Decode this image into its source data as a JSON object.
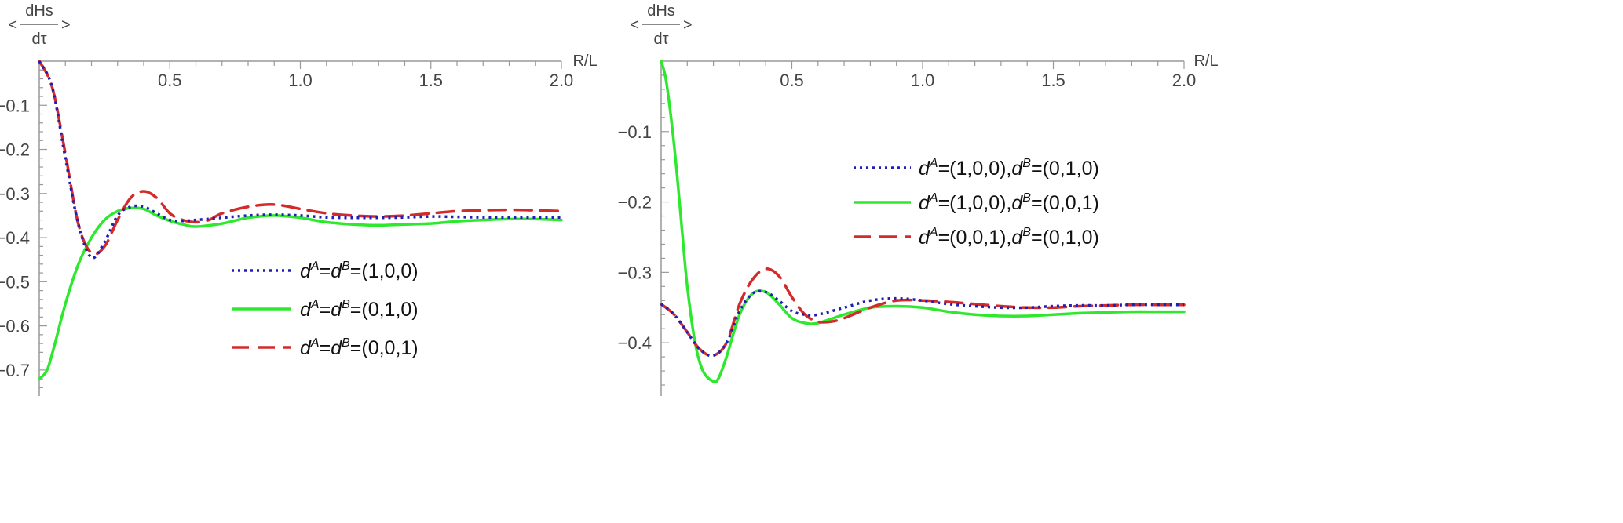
{
  "chart_data": [
    {
      "type": "line",
      "xlabel": "R/L",
      "ylabel": {
        "numerator": "dHs",
        "denominator": "dτ",
        "left_bracket": "<",
        "right_bracket": ">"
      },
      "xlim": [
        0,
        2.0
      ],
      "ylim": [
        -0.75,
        0.0
      ],
      "xticks": [
        "0.5",
        "1.0",
        "1.5",
        "2.0"
      ],
      "yticks": [
        "-0.1",
        "-0.2",
        "-0.3",
        "-0.4",
        "-0.5",
        "-0.6",
        "-0.7"
      ],
      "legend_position": "center-right",
      "series": [
        {
          "name": "dA=dB=(1,0,0)",
          "legend": {
            "d1": "d",
            "s1": "A",
            "eq": "=",
            "d2": "d",
            "s2": "B",
            "val": "=(1,0,0)"
          },
          "color": "#1f1fb4",
          "style": "dotted",
          "x": [
            0,
            0.05,
            0.1,
            0.15,
            0.2,
            0.25,
            0.3,
            0.35,
            0.4,
            0.45,
            0.5,
            0.55,
            0.6,
            0.7,
            0.8,
            0.9,
            1.0,
            1.1,
            1.2,
            1.3,
            1.4,
            1.5,
            1.6,
            1.7,
            1.8,
            1.9,
            2.0
          ],
          "y": [
            0,
            -0.06,
            -0.22,
            -0.37,
            -0.445,
            -0.41,
            -0.35,
            -0.33,
            -0.33,
            -0.345,
            -0.36,
            -0.362,
            -0.36,
            -0.355,
            -0.35,
            -0.348,
            -0.35,
            -0.354,
            -0.355,
            -0.355,
            -0.354,
            -0.352,
            -0.353,
            -0.354,
            -0.354,
            -0.354,
            -0.354
          ]
        },
        {
          "name": "dA=dB=(0,1,0)",
          "legend": {
            "d1": "d",
            "s1": "A",
            "eq": "=",
            "d2": "d",
            "s2": "B",
            "val": "=(0,1,0)"
          },
          "color": "#2ee82e",
          "style": "solid",
          "x": [
            0,
            0.03,
            0.06,
            0.1,
            0.15,
            0.2,
            0.25,
            0.3,
            0.35,
            0.4,
            0.45,
            0.5,
            0.55,
            0.6,
            0.7,
            0.8,
            0.9,
            1.0,
            1.1,
            1.2,
            1.3,
            1.4,
            1.5,
            1.6,
            1.7,
            1.8,
            1.9,
            2.0
          ],
          "y": [
            -0.72,
            -0.7,
            -0.64,
            -0.55,
            -0.46,
            -0.4,
            -0.36,
            -0.34,
            -0.333,
            -0.335,
            -0.35,
            -0.362,
            -0.37,
            -0.375,
            -0.368,
            -0.355,
            -0.35,
            -0.355,
            -0.365,
            -0.37,
            -0.372,
            -0.37,
            -0.368,
            -0.363,
            -0.36,
            -0.358,
            -0.358,
            -0.36
          ]
        },
        {
          "name": "dA=dB=(0,0,1)",
          "legend": {
            "d1": "d",
            "s1": "A",
            "eq": "=",
            "d2": "d",
            "s2": "B",
            "val": "=(0,0,1)"
          },
          "color": "#d42a2a",
          "style": "dashed",
          "x": [
            0,
            0.05,
            0.1,
            0.15,
            0.2,
            0.25,
            0.3,
            0.35,
            0.4,
            0.45,
            0.5,
            0.55,
            0.6,
            0.65,
            0.7,
            0.8,
            0.9,
            1.0,
            1.1,
            1.2,
            1.3,
            1.4,
            1.5,
            1.6,
            1.7,
            1.8,
            1.9,
            2.0
          ],
          "y": [
            0,
            -0.06,
            -0.21,
            -0.37,
            -0.435,
            -0.42,
            -0.36,
            -0.31,
            -0.295,
            -0.31,
            -0.345,
            -0.36,
            -0.365,
            -0.36,
            -0.345,
            -0.33,
            -0.325,
            -0.335,
            -0.345,
            -0.35,
            -0.352,
            -0.35,
            -0.345,
            -0.34,
            -0.338,
            -0.337,
            -0.338,
            -0.34
          ]
        }
      ]
    },
    {
      "type": "line",
      "xlabel": "R/L",
      "ylabel": {
        "numerator": "dHs",
        "denominator": "dτ",
        "left_bracket": "<",
        "right_bracket": ">"
      },
      "xlim": [
        0,
        2.0
      ],
      "ylim": [
        -0.47,
        0.0
      ],
      "xticks": [
        "0.5",
        "1.0",
        "1.5",
        "2.0"
      ],
      "yticks": [
        "-0.1",
        "-0.2",
        "-0.3",
        "-0.4"
      ],
      "legend_position": "top-right",
      "series": [
        {
          "name": "dA=(1,0,0),dB=(0,1,0)",
          "legend": {
            "d1": "d",
            "s1": "A",
            "eq": "=(1,0,0),",
            "d2": "d",
            "s2": "B",
            "val": "=(0,1,0)"
          },
          "color": "#1f1fb4",
          "style": "dotted",
          "x": [
            0,
            0.05,
            0.1,
            0.15,
            0.2,
            0.25,
            0.3,
            0.35,
            0.4,
            0.45,
            0.5,
            0.55,
            0.6,
            0.7,
            0.8,
            0.9,
            1.0,
            1.1,
            1.2,
            1.3,
            1.4,
            1.5,
            1.6,
            1.7,
            1.8,
            1.9,
            2.0
          ],
          "y": [
            -0.345,
            -0.36,
            -0.385,
            -0.41,
            -0.418,
            -0.4,
            -0.355,
            -0.33,
            -0.328,
            -0.34,
            -0.355,
            -0.36,
            -0.36,
            -0.35,
            -0.34,
            -0.337,
            -0.34,
            -0.345,
            -0.348,
            -0.35,
            -0.35,
            -0.348,
            -0.347,
            -0.347,
            -0.346,
            -0.346,
            -0.346
          ]
        },
        {
          "name": "dA=(1,0,0),dB=(0,0,1)",
          "legend": {
            "d1": "d",
            "s1": "A",
            "eq": "=(1,0,0),",
            "d2": "d",
            "s2": "B",
            "val": "=(0,0,1)"
          },
          "color": "#2ee82e",
          "style": "solid",
          "x": [
            0,
            0.02,
            0.05,
            0.08,
            0.1,
            0.13,
            0.16,
            0.2,
            0.22,
            0.25,
            0.3,
            0.35,
            0.4,
            0.45,
            0.5,
            0.55,
            0.6,
            0.7,
            0.8,
            0.9,
            1.0,
            1.1,
            1.2,
            1.3,
            1.4,
            1.5,
            1.6,
            1.7,
            1.8,
            1.9,
            2.0
          ],
          "y": [
            0,
            -0.03,
            -0.12,
            -0.24,
            -0.32,
            -0.4,
            -0.44,
            -0.455,
            -0.45,
            -0.42,
            -0.36,
            -0.33,
            -0.328,
            -0.345,
            -0.365,
            -0.372,
            -0.372,
            -0.36,
            -0.35,
            -0.348,
            -0.35,
            -0.356,
            -0.36,
            -0.362,
            -0.362,
            -0.36,
            -0.358,
            -0.357,
            -0.356,
            -0.356,
            -0.356
          ]
        },
        {
          "name": "dA=(0,0,1),dB=(0,1,0)",
          "legend": {
            "d1": "d",
            "s1": "A",
            "eq": "=(0,0,1),",
            "d2": "d",
            "s2": "B",
            "val": "=(0,1,0)"
          },
          "color": "#d42a2a",
          "style": "dashed",
          "x": [
            0,
            0.05,
            0.1,
            0.15,
            0.2,
            0.25,
            0.3,
            0.35,
            0.4,
            0.45,
            0.5,
            0.55,
            0.6,
            0.65,
            0.7,
            0.8,
            0.9,
            1.0,
            1.1,
            1.2,
            1.3,
            1.4,
            1.5,
            1.6,
            1.7,
            1.8,
            1.9,
            2.0
          ],
          "y": [
            -0.345,
            -0.36,
            -0.385,
            -0.41,
            -0.418,
            -0.4,
            -0.345,
            -0.31,
            -0.295,
            -0.305,
            -0.335,
            -0.36,
            -0.37,
            -0.37,
            -0.365,
            -0.35,
            -0.34,
            -0.34,
            -0.342,
            -0.345,
            -0.348,
            -0.35,
            -0.35,
            -0.348,
            -0.347,
            -0.346,
            -0.346,
            -0.346
          ]
        }
      ]
    }
  ]
}
